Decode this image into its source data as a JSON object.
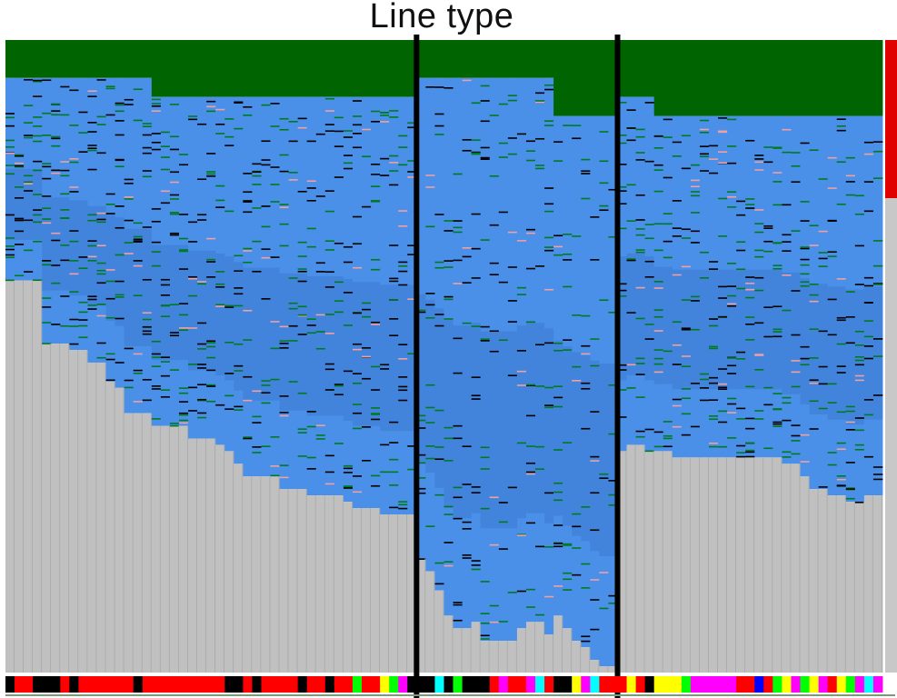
{
  "chart_data": {
    "type": "heatmap",
    "title": "Line type",
    "xlabel": "",
    "ylabel": "",
    "n_columns": 96,
    "group_boundaries_after_column": [
      44,
      66
    ],
    "fill_bottom_per_column": [
      0.62,
      0.62,
      0.62,
      0.62,
      0.52,
      0.52,
      0.52,
      0.51,
      0.51,
      0.49,
      0.49,
      0.46,
      0.45,
      0.41,
      0.41,
      0.41,
      0.39,
      0.39,
      0.39,
      0.39,
      0.37,
      0.37,
      0.37,
      0.36,
      0.35,
      0.33,
      0.31,
      0.31,
      0.31,
      0.31,
      0.29,
      0.29,
      0.29,
      0.28,
      0.28,
      0.28,
      0.28,
      0.27,
      0.26,
      0.26,
      0.26,
      0.25,
      0.25,
      0.25,
      0.25,
      0.18,
      0.16,
      0.13,
      0.09,
      0.07,
      0.07,
      0.08,
      0.05,
      0.05,
      0.05,
      0.05,
      0.07,
      0.08,
      0.08,
      0.06,
      0.09,
      0.07,
      0.05,
      0.04,
      0.02,
      0.01,
      0.01,
      0.35,
      0.36,
      0.36,
      0.35,
      0.35,
      0.35,
      0.34,
      0.34,
      0.34,
      0.34,
      0.34,
      0.34,
      0.34,
      0.34,
      0.34,
      0.34,
      0.34,
      0.34,
      0.33,
      0.33,
      0.31,
      0.29,
      0.29,
      0.28,
      0.28,
      0.27,
      0.27,
      0.28,
      0.28
    ],
    "green_top_per_column": [
      0.06,
      0.06,
      0.06,
      0.06,
      0.06,
      0.06,
      0.06,
      0.06,
      0.06,
      0.06,
      0.06,
      0.06,
      0.06,
      0.06,
      0.06,
      0.06,
      0.09,
      0.09,
      0.09,
      0.09,
      0.09,
      0.09,
      0.09,
      0.09,
      0.09,
      0.09,
      0.09,
      0.09,
      0.09,
      0.09,
      0.09,
      0.09,
      0.09,
      0.09,
      0.09,
      0.09,
      0.09,
      0.09,
      0.09,
      0.09,
      0.09,
      0.09,
      0.09,
      0.09,
      0.09,
      0.06,
      0.06,
      0.06,
      0.06,
      0.06,
      0.06,
      0.06,
      0.06,
      0.06,
      0.06,
      0.06,
      0.06,
      0.06,
      0.06,
      0.06,
      0.12,
      0.12,
      0.12,
      0.12,
      0.12,
      0.12,
      0.12,
      0.09,
      0.09,
      0.09,
      0.09,
      0.12,
      0.12,
      0.12,
      0.12,
      0.12,
      0.12,
      0.12,
      0.12,
      0.12,
      0.12,
      0.12,
      0.12,
      0.12,
      0.12,
      0.12,
      0.12,
      0.12,
      0.12,
      0.12,
      0.12,
      0.12,
      0.12,
      0.12,
      0.12,
      0.12
    ],
    "annotation_colors": [
      "#000000",
      "#ff0000",
      "#ff0000",
      "#000000",
      "#000000",
      "#000000",
      "#ff0000",
      "#000000",
      "#ff0000",
      "#ff0000",
      "#ff0000",
      "#ff0000",
      "#ff0000",
      "#ff0000",
      "#000000",
      "#ff0000",
      "#ff0000",
      "#ff0000",
      "#ff0000",
      "#ff0000",
      "#ff0000",
      "#ff0000",
      "#ff0000",
      "#ff0000",
      "#000000",
      "#000000",
      "#ff0000",
      "#000000",
      "#ff0000",
      "#ff0000",
      "#ff0000",
      "#ff0000",
      "#000000",
      "#ff0000",
      "#ff0000",
      "#000000",
      "#ff0000",
      "#ff0000",
      "#00ff00",
      "#ff0000",
      "#ff0000",
      "#ffff00",
      "#00ff00",
      "#ff00ff",
      "#000000",
      "#000000",
      "#000000",
      "#00ffff",
      "#000000",
      "#00ff00",
      "#000000",
      "#000000",
      "#000000",
      "#ff0000",
      "#ff00ff",
      "#ff0000",
      "#ff0000",
      "#ff00ff",
      "#00ffff",
      "#ff0000",
      "#000000",
      "#000000",
      "#ffff00",
      "#ff00ff",
      "#00ffff",
      "#ff0000",
      "#ff0000",
      "#ff0000",
      "#ffff00",
      "#ff0000",
      "#000000",
      "#ffff00",
      "#ffff00",
      "#ffff00",
      "#00ff00",
      "#ff00ff",
      "#ff00ff",
      "#ff00ff",
      "#ff00ff",
      "#ff00ff",
      "#ff0000",
      "#ff0000",
      "#0000ff",
      "#ff0000",
      "#00ff00",
      "#ffff00",
      "#ff00ff",
      "#00ff00",
      "#ffff00",
      "#ff00ff",
      "#ff0000",
      "#ffff00",
      "#00ff00",
      "#ff00ff",
      "#00ffff",
      "#ff00ff"
    ],
    "side_bar": {
      "red_fraction": 0.25
    },
    "colors": {
      "background_cell": "#c0c0c0",
      "main_cell": "#4a8fe8",
      "top_band": "#006400",
      "minor_line_green": "#007a20",
      "minor_line_black": "#000000",
      "minor_line_pink": "#f0a0a0"
    }
  }
}
